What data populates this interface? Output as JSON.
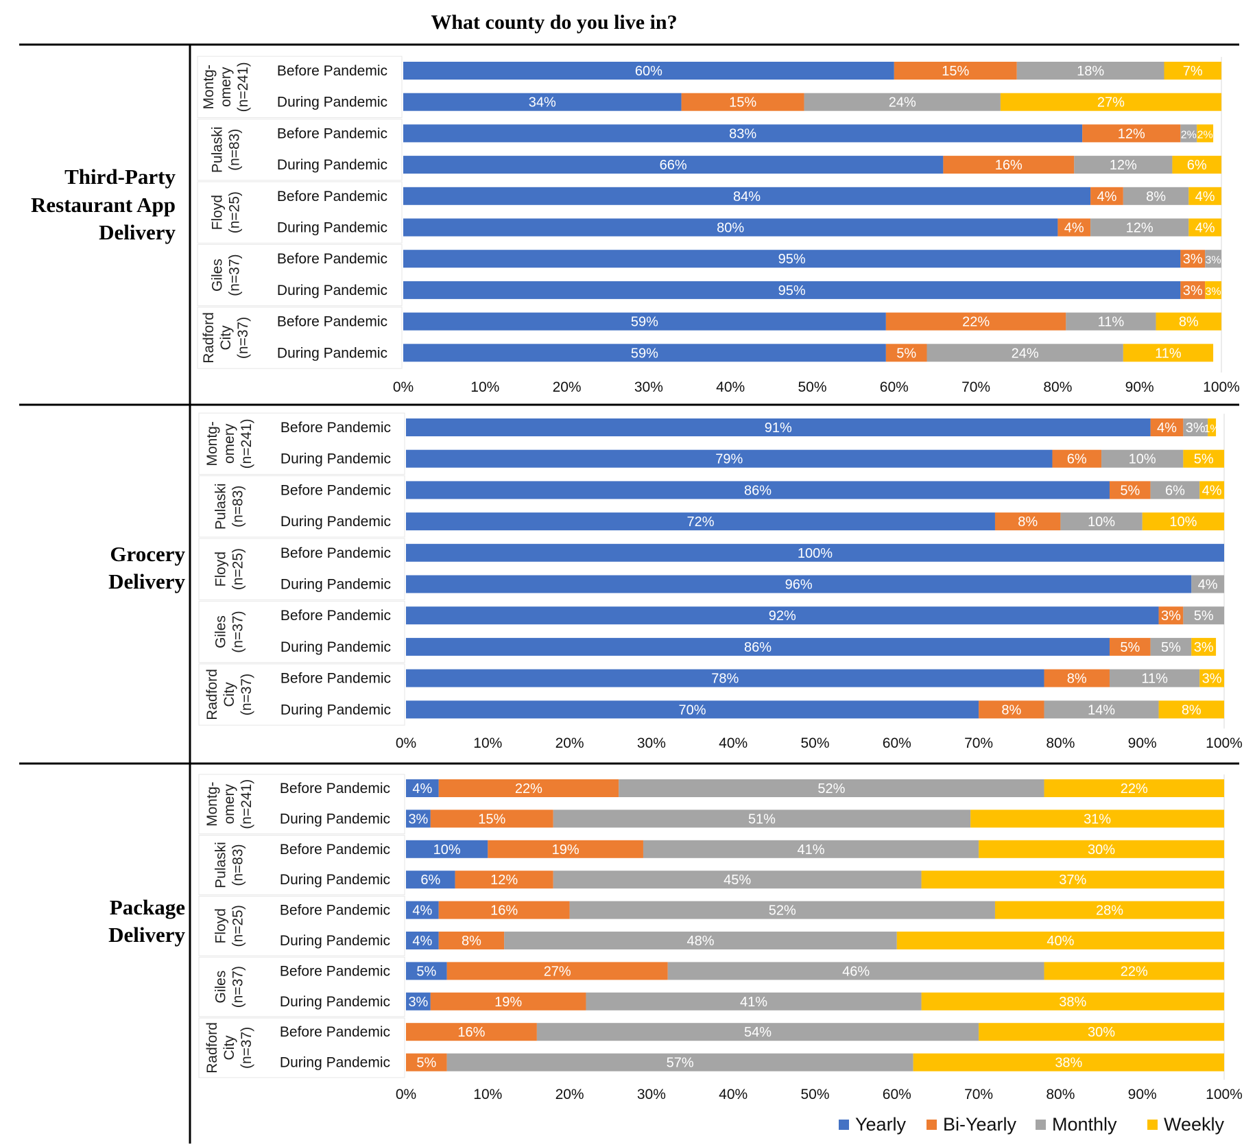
{
  "chart_data": {
    "type": "bar",
    "orientation": "horizontal",
    "stacked": "percent",
    "title": "What county do you live in?",
    "legend": {
      "placement": "bottom-right",
      "entries": [
        {
          "name": "Yearly",
          "color": "#4472c4"
        },
        {
          "name": "Bi-Yearly",
          "color": "#ed7d31"
        },
        {
          "name": "Monthly",
          "color": "#a5a5a5"
        },
        {
          "name": "Weekly",
          "color": "#ffc000"
        }
      ]
    },
    "xticks": [
      "0%",
      "10%",
      "20%",
      "30%",
      "40%",
      "50%",
      "60%",
      "70%",
      "80%",
      "90%",
      "100%"
    ],
    "xlim": [
      0,
      100
    ],
    "panels": [
      {
        "label_lines": [
          "Third-Party",
          "Restaurant App",
          "Delivery"
        ],
        "groups": [
          {
            "county_lines": [
              "Montg-",
              "omery",
              "(n=241)"
            ],
            "rows": [
              {
                "label": "Before Pandemic",
                "values": [
                  60,
                  15,
                  18,
                  7
                ],
                "labels": [
                  "60%",
                  "15%",
                  "18%",
                  "7%"
                ]
              },
              {
                "label": "During Pandemic",
                "values": [
                  34,
                  15,
                  24,
                  27
                ],
                "labels": [
                  "34%",
                  "15%",
                  "24%",
                  "27%"
                ]
              }
            ]
          },
          {
            "county_lines": [
              "Pulaski",
              "(n=83)"
            ],
            "rows": [
              {
                "label": "Before Pandemic",
                "values": [
                  83,
                  12,
                  2,
                  2
                ],
                "labels": [
                  "83%",
                  "12%",
                  "2%",
                  "2%"
                ]
              },
              {
                "label": "During Pandemic",
                "values": [
                  66,
                  16,
                  12,
                  6
                ],
                "labels": [
                  "66%",
                  "16%",
                  "12%",
                  "6%"
                ]
              }
            ]
          },
          {
            "county_lines": [
              "Floyd",
              "(n=25)"
            ],
            "rows": [
              {
                "label": "Before Pandemic",
                "values": [
                  84,
                  4,
                  8,
                  4
                ],
                "labels": [
                  "84%",
                  "4%",
                  "8%",
                  "4%"
                ]
              },
              {
                "label": "During Pandemic",
                "values": [
                  80,
                  4,
                  12,
                  4
                ],
                "labels": [
                  "80%",
                  "4%",
                  "12%",
                  "4%"
                ]
              }
            ]
          },
          {
            "county_lines": [
              "Giles",
              "(n=37)"
            ],
            "rows": [
              {
                "label": "Before Pandemic",
                "values": [
                  95,
                  3,
                  3,
                  0
                ],
                "labels": [
                  "95%",
                  "3%",
                  "3%",
                  ""
                ]
              },
              {
                "label": "During Pandemic",
                "values": [
                  95,
                  3,
                  0,
                  3
                ],
                "labels": [
                  "95%",
                  "3%",
                  "",
                  "3%"
                ]
              }
            ]
          },
          {
            "county_lines": [
              "Radford",
              "City",
              "(n=37)"
            ],
            "rows": [
              {
                "label": "Before Pandemic",
                "values": [
                  59,
                  22,
                  11,
                  8
                ],
                "labels": [
                  "59%",
                  "22%",
                  "11%",
                  "8%"
                ]
              },
              {
                "label": "During Pandemic",
                "values": [
                  59,
                  5,
                  24,
                  11
                ],
                "labels": [
                  "59%",
                  "5%",
                  "24%",
                  "11%"
                ]
              }
            ]
          }
        ]
      },
      {
        "label_lines": [
          "Grocery",
          "Delivery"
        ],
        "groups": [
          {
            "county_lines": [
              "Montg-",
              "omery",
              "(n=241)"
            ],
            "rows": [
              {
                "label": "Before Pandemic",
                "values": [
                  91,
                  4,
                  3,
                  1
                ],
                "labels": [
                  "91%",
                  "4%",
                  "3%",
                  "1%"
                ]
              },
              {
                "label": "During Pandemic",
                "values": [
                  79,
                  6,
                  10,
                  5
                ],
                "labels": [
                  "79%",
                  "6%",
                  "10%",
                  "5%"
                ]
              }
            ]
          },
          {
            "county_lines": [
              "Pulaski",
              "(n=83)"
            ],
            "rows": [
              {
                "label": "Before Pandemic",
                "values": [
                  86,
                  5,
                  6,
                  4
                ],
                "labels": [
                  "86%",
                  "5%",
                  "6%",
                  "4%"
                ]
              },
              {
                "label": "During Pandemic",
                "values": [
                  72,
                  8,
                  10,
                  10
                ],
                "labels": [
                  "72%",
                  "8%",
                  "10%",
                  "10%"
                ]
              }
            ]
          },
          {
            "county_lines": [
              "Floyd",
              "(n=25)"
            ],
            "rows": [
              {
                "label": "Before Pandemic",
                "values": [
                  100,
                  0,
                  0,
                  0
                ],
                "labels": [
                  "100%",
                  "",
                  "",
                  ""
                ]
              },
              {
                "label": "During Pandemic",
                "values": [
                  96,
                  0,
                  4,
                  0
                ],
                "labels": [
                  "96%",
                  "",
                  "4%",
                  ""
                ]
              }
            ]
          },
          {
            "county_lines": [
              "Giles",
              "(n=37)"
            ],
            "rows": [
              {
                "label": "Before Pandemic",
                "values": [
                  92,
                  3,
                  5,
                  0
                ],
                "labels": [
                  "92%",
                  "3%",
                  "5%",
                  ""
                ]
              },
              {
                "label": "During Pandemic",
                "values": [
                  86,
                  5,
                  5,
                  3
                ],
                "labels": [
                  "86%",
                  "5%",
                  "5%",
                  "3%"
                ]
              }
            ]
          },
          {
            "county_lines": [
              "Radford",
              "City",
              "(n=37)"
            ],
            "rows": [
              {
                "label": "Before Pandemic",
                "values": [
                  78,
                  8,
                  11,
                  3
                ],
                "labels": [
                  "78%",
                  "8%",
                  "11%",
                  "3%"
                ]
              },
              {
                "label": "During Pandemic",
                "values": [
                  70,
                  8,
                  14,
                  8
                ],
                "labels": [
                  "70%",
                  "8%",
                  "14%",
                  "8%"
                ]
              }
            ]
          }
        ]
      },
      {
        "label_lines": [
          "Package",
          "Delivery"
        ],
        "groups": [
          {
            "county_lines": [
              "Montg-",
              "omery",
              "(n=241)"
            ],
            "rows": [
              {
                "label": "Before Pandemic",
                "values": [
                  4,
                  22,
                  52,
                  22
                ],
                "labels": [
                  "4%",
                  "22%",
                  "52%",
                  "22%"
                ]
              },
              {
                "label": "During Pandemic",
                "values": [
                  3,
                  15,
                  51,
                  31
                ],
                "labels": [
                  "3%",
                  "15%",
                  "51%",
                  "31%"
                ]
              }
            ]
          },
          {
            "county_lines": [
              "Pulaski",
              "(n=83)"
            ],
            "rows": [
              {
                "label": "Before Pandemic",
                "values": [
                  10,
                  19,
                  41,
                  30
                ],
                "labels": [
                  "10%",
                  "19%",
                  "41%",
                  "30%"
                ]
              },
              {
                "label": "During Pandemic",
                "values": [
                  6,
                  12,
                  45,
                  37
                ],
                "labels": [
                  "6%",
                  "12%",
                  "45%",
                  "37%"
                ]
              }
            ]
          },
          {
            "county_lines": [
              "Floyd",
              "(n=25)"
            ],
            "rows": [
              {
                "label": "Before Pandemic",
                "values": [
                  4,
                  16,
                  52,
                  28
                ],
                "labels": [
                  "4%",
                  "16%",
                  "52%",
                  "28%"
                ]
              },
              {
                "label": "During Pandemic",
                "values": [
                  4,
                  8,
                  48,
                  40
                ],
                "labels": [
                  "4%",
                  "8%",
                  "48%",
                  "40%"
                ]
              }
            ]
          },
          {
            "county_lines": [
              "Giles",
              "(n=37)"
            ],
            "rows": [
              {
                "label": "Before Pandemic",
                "values": [
                  5,
                  27,
                  46,
                  22
                ],
                "labels": [
                  "5%",
                  "27%",
                  "46%",
                  "22%"
                ]
              },
              {
                "label": "During Pandemic",
                "values": [
                  3,
                  19,
                  41,
                  38
                ],
                "labels": [
                  "3%",
                  "19%",
                  "41%",
                  "38%"
                ]
              }
            ]
          },
          {
            "county_lines": [
              "Radford",
              "City",
              "(n=37)"
            ],
            "rows": [
              {
                "label": "Before Pandemic",
                "values": [
                  0,
                  16,
                  54,
                  30
                ],
                "labels": [
                  "",
                  "16%",
                  "54%",
                  "30%"
                ]
              },
              {
                "label": "During Pandemic",
                "values": [
                  0,
                  5,
                  57,
                  38
                ],
                "labels": [
                  "",
                  "5%",
                  "57%",
                  "38%"
                ]
              }
            ]
          }
        ]
      }
    ]
  }
}
